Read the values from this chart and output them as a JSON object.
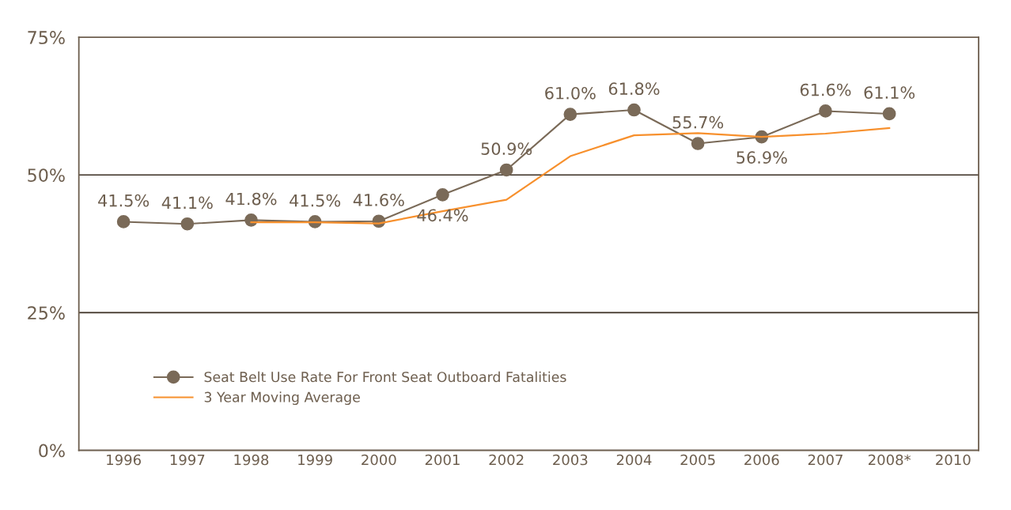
{
  "chart_data": {
    "type": "line",
    "categories": [
      "1996",
      "1997",
      "1998",
      "1999",
      "2000",
      "2001",
      "2002",
      "2003",
      "2004",
      "2005",
      "2006",
      "2007",
      "2008*",
      "2010"
    ],
    "series": [
      {
        "name": "Seat Belt Use Rate For Front Seat Outboard Fatalities",
        "color": "#7a6a58",
        "marker": "circle",
        "values": [
          41.5,
          41.1,
          41.8,
          41.5,
          41.6,
          46.4,
          50.9,
          61.0,
          61.8,
          55.7,
          56.9,
          61.6,
          61.1,
          null
        ],
        "value_labels": [
          "41.5%",
          "41.1%",
          "41.8%",
          "41.5%",
          "41.6%",
          "46.4%",
          "50.9%",
          "61.0%",
          "61.8%",
          "55.7%",
          "56.9%",
          "61.6%",
          "61.1%",
          null
        ]
      },
      {
        "name": "3 Year Moving Average",
        "color": "#f7902d",
        "marker": "none",
        "values": [
          null,
          null,
          41.4,
          41.4,
          41.2,
          43.4,
          45.5,
          53.4,
          57.2,
          57.6,
          56.9,
          57.5,
          58.5,
          null
        ]
      }
    ],
    "ylim": [
      0,
      75
    ],
    "yticks": [
      {
        "value": 0,
        "label": "0%"
      },
      {
        "value": 25,
        "label": "25%"
      },
      {
        "value": 50,
        "label": "50%"
      },
      {
        "value": 75,
        "label": "75%"
      }
    ],
    "grid": "y",
    "legend": "bottom left",
    "line_style": "solid"
  }
}
